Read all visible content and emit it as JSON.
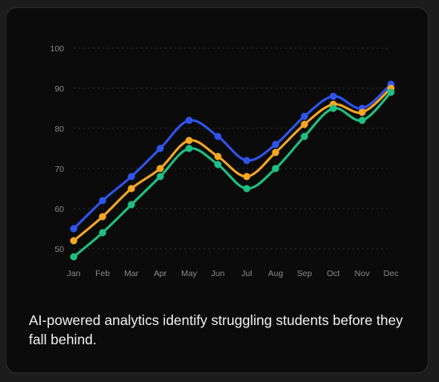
{
  "caption": "AI-powered analytics identify struggling students before they fall behind.",
  "colors": {
    "background": "#0b0b0b",
    "grid": "#2e2e2e",
    "tick_text": "#8a8a8a"
  },
  "chart_data": {
    "type": "line",
    "title": "",
    "xlabel": "",
    "ylabel": "",
    "ylim": [
      45,
      100
    ],
    "yticks": [
      50,
      60,
      70,
      80,
      90,
      100
    ],
    "grid": "horizontal dotted",
    "legend": "none",
    "categories": [
      "Jan",
      "Feb",
      "Mar",
      "Apr",
      "May",
      "Jun",
      "Jul",
      "Aug",
      "Sep",
      "Oct",
      "Nov",
      "Dec"
    ],
    "series": [
      {
        "color": "#2f54eb",
        "values": [
          55,
          62,
          68,
          75,
          82,
          78,
          72,
          76,
          83,
          88,
          85,
          91
        ]
      },
      {
        "color": "#f5a623",
        "values": [
          52,
          58,
          65,
          70,
          77,
          73,
          68,
          74,
          81,
          86,
          84,
          90
        ]
      },
      {
        "color": "#1fbf83",
        "values": [
          48,
          54,
          61,
          68,
          75,
          71,
          65,
          70,
          78,
          85,
          82,
          89
        ]
      }
    ]
  }
}
